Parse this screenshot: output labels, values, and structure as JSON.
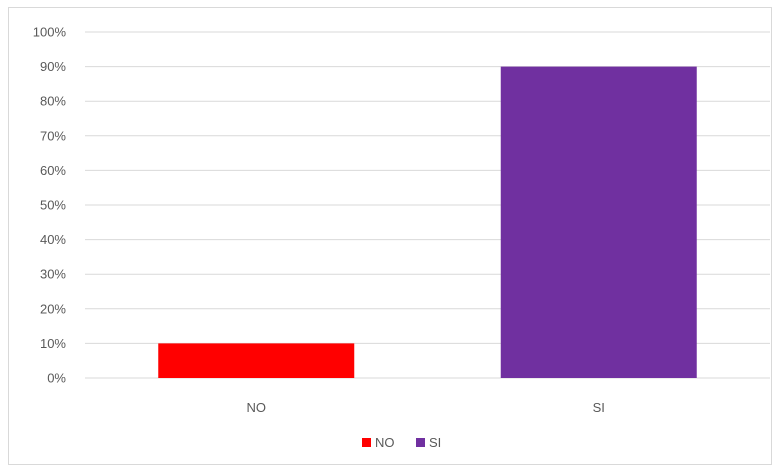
{
  "chart_data": {
    "type": "bar",
    "categories": [
      "NO",
      "SI"
    ],
    "values": [
      10,
      90
    ],
    "colors": [
      "#ff0000",
      "#7030a0"
    ],
    "ylim": [
      0,
      100
    ],
    "yticks": [
      0,
      10,
      20,
      30,
      40,
      50,
      60,
      70,
      80,
      90,
      100
    ],
    "ytick_labels": [
      "0%",
      "10%",
      "20%",
      "30%",
      "40%",
      "50%",
      "60%",
      "70%",
      "80%",
      "90%",
      "100%"
    ],
    "grid": true,
    "gridline_color": "#d9d9d9",
    "legend": {
      "placement": "bottom",
      "entries": [
        {
          "label": "NO",
          "color": "#ff0000"
        },
        {
          "label": "SI",
          "color": "#7030a0"
        }
      ]
    }
  }
}
